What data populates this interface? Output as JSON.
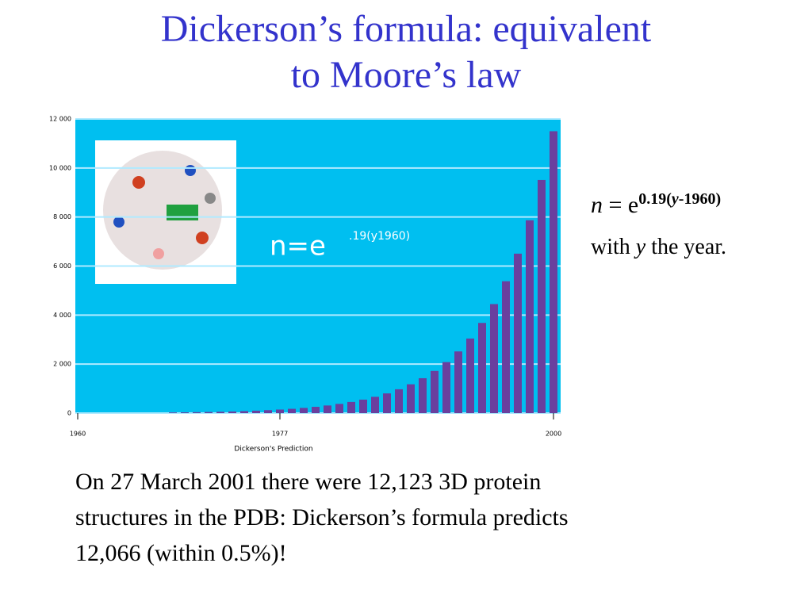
{
  "slide": {
    "title_lines": [
      "Dickerson’s formula: equivalent",
      "to Moore’s law"
    ],
    "formula": {
      "n": "n",
      "eq": " = e",
      "exp_a": "0.19(",
      "exp_y": "y",
      "exp_b": "-1960)"
    },
    "caption": {
      "a": "with ",
      "y": "y",
      "b": " the year."
    },
    "note_lines": [
      "On 27 March 2001 there were 12,123 3D protein",
      "structures in the PDB: Dickerson’s formula predicts",
      "12,066 (within 0.5%)!"
    ]
  },
  "chart_data": {
    "type": "bar",
    "color": "#6a3f9e",
    "background": "#00bff0",
    "grid": true,
    "annotation": "n=e",
    "annotation_exponent": ".19(y1960)",
    "x_label": "Dickerson's Prediction",
    "x": [
      1968,
      1969,
      1970,
      1971,
      1972,
      1973,
      1974,
      1975,
      1976,
      1977,
      1978,
      1979,
      1980,
      1981,
      1982,
      1983,
      1984,
      1985,
      1986,
      1987,
      1988,
      1989,
      1990,
      1991,
      1992,
      1993,
      1994,
      1995,
      1996,
      1997,
      1998,
      1999,
      2000
    ],
    "values": [
      27,
      32,
      39,
      47,
      57,
      68,
      83,
      100,
      121,
      146,
      176,
      213,
      258,
      312,
      377,
      456,
      551,
      666,
      805,
      974,
      1177,
      1424,
      1721,
      2081,
      2517,
      3043,
      3680,
      4449,
      5380,
      6505,
      7866,
      9511,
      11500
    ],
    "xlim": [
      1960,
      2000
    ],
    "xticks": [
      1960,
      1977,
      2000
    ],
    "ylim": [
      0,
      12000
    ],
    "yticks": [
      0,
      {
        "value": 2000,
        "label": "2 000"
      },
      {
        "value": 4000,
        "label": "4 000"
      },
      {
        "value": 6000,
        "label": "6 000"
      },
      {
        "value": 8000,
        "label": "8 000"
      },
      {
        "value": 10000,
        "label": "10 000"
      },
      {
        "value": 12000,
        "label": "12 000"
      }
    ]
  }
}
